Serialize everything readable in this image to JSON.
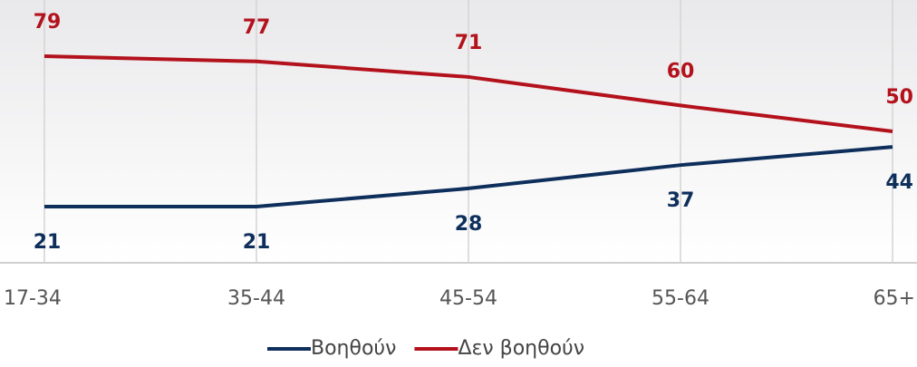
{
  "chart_data": {
    "type": "line",
    "categories": [
      "17-34",
      "35-44",
      "45-54",
      "55-64",
      "65+"
    ],
    "series": [
      {
        "name": "Βοηθούν",
        "color": "#0e2f5b",
        "values": [
          21,
          21,
          28,
          37,
          44
        ]
      },
      {
        "name": "Δεν βοηθούν",
        "color": "#b3121c",
        "values": [
          79,
          77,
          71,
          60,
          50
        ]
      }
    ],
    "ylim": [
      0,
      100
    ],
    "grid": true
  }
}
